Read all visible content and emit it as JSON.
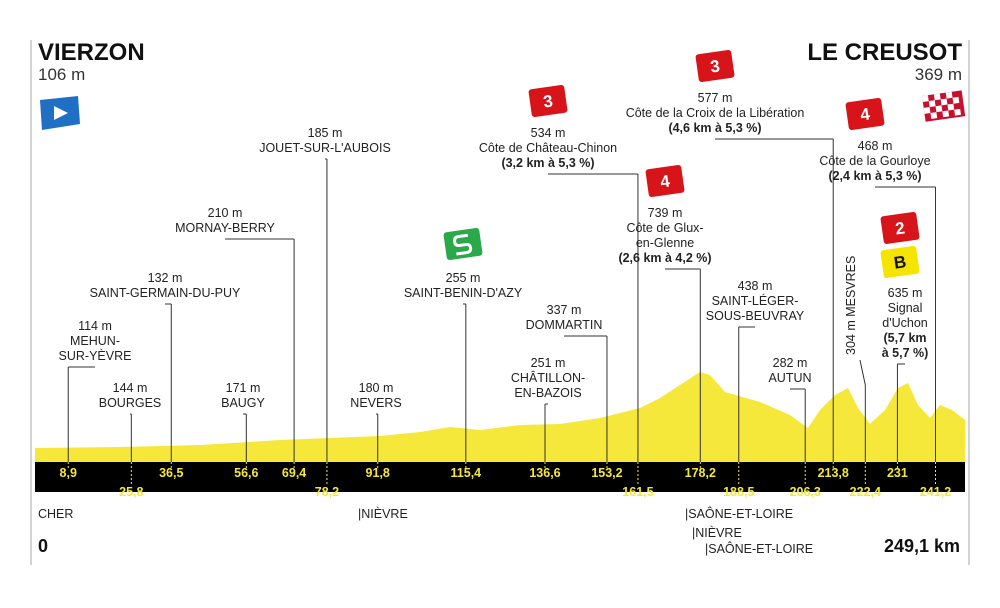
{
  "start": {
    "name": "VIERZON",
    "elevation": "106 m"
  },
  "finish": {
    "name": "LE CREUSOT",
    "elevation": "369 m"
  },
  "waypoints": [
    {
      "name": [
        "114 m",
        "MEHUN-",
        "SUR-YÈVRE"
      ],
      "km": "8,9"
    },
    {
      "name": [
        "144 m",
        "BOURGES"
      ],
      "km": "25,8"
    },
    {
      "name": [
        "132 m",
        "SAINT-GERMAIN-DU-PUY"
      ],
      "km": "36,5"
    },
    {
      "name": [
        "171 m",
        "BAUGY"
      ],
      "km": "56,6"
    },
    {
      "name": [
        "210 m",
        "MORNAY-BERRY"
      ],
      "km": "69,4"
    },
    {
      "name": [
        "185 m",
        "JOUET-SUR-L'AUBOIS"
      ],
      "km": "78,2"
    },
    {
      "name": [
        "180 m",
        "NEVERS"
      ],
      "km": "91,8"
    },
    {
      "name": [
        "255 m",
        "SAINT-BENIN-D'AZY"
      ],
      "km": "115,4"
    },
    {
      "name": [
        "251 m",
        "CHÂTILLON-",
        "EN-BAZOIS"
      ],
      "km": "136,6"
    },
    {
      "name": [
        "337 m",
        "DOMMARTIN"
      ],
      "km": "153,2"
    },
    {
      "name": [
        "534 m",
        "Côte de Château-Chinon"
      ],
      "detail": [
        "(3,2 km à 5,3 %)"
      ],
      "km": "161,5",
      "category": "3"
    },
    {
      "name": [
        "739 m",
        "Côte de Glux-",
        "en-Glenne"
      ],
      "detail": [
        "(2,6 km à 4,2 %)"
      ],
      "km": "178,2",
      "category": "4"
    },
    {
      "name": [
        "438 m",
        "SAINT-LÉGER-",
        "SOUS-BEUVRAY"
      ],
      "km": "188,5"
    },
    {
      "name": [
        "282 m",
        "AUTUN"
      ],
      "km": "206,3"
    },
    {
      "name": [
        "577 m",
        "Côte de la Croix de la Libération"
      ],
      "detail": [
        "(4,6 km à 5,3 %)"
      ],
      "km": "213,8",
      "category": "3"
    },
    {
      "name": [
        "304 m MESVRES"
      ],
      "km": "222,4"
    },
    {
      "name": [
        "635 m",
        "Signal",
        "d'Uchon"
      ],
      "detail": [
        "(5,7 km",
        "à 5,7 %)"
      ],
      "km": "231",
      "category": "2",
      "bonus": "B"
    },
    {
      "name": [
        "468 m",
        "Côte de la Gourloye"
      ],
      "detail": [
        "(2,4 km à 5,3 %)"
      ],
      "km": "241,2",
      "category": "4"
    }
  ],
  "departments": [
    "CHER",
    "|NIÈVRE",
    "|SAÔNE-ET-LOIRE",
    "|NIÈVRE",
    "|SAÔNE-ET-LOIRE"
  ],
  "distance_start": "0",
  "distance_total": "249,1 km"
}
